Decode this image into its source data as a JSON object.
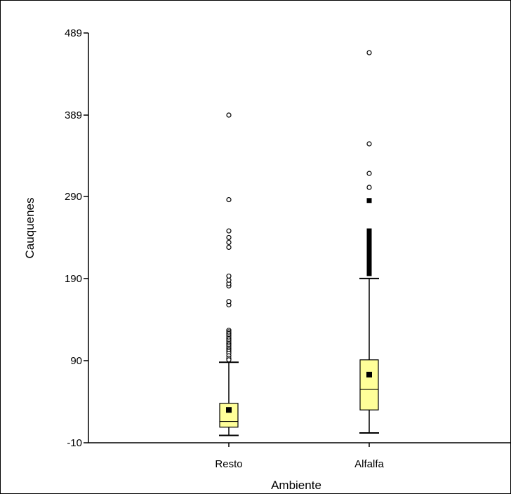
{
  "chart_data": {
    "type": "boxplot",
    "title": "",
    "xlabel": "Ambiente",
    "ylabel": "Cauquenes",
    "ylim": [
      -10,
      489
    ],
    "yticks": [
      -10,
      90,
      190,
      290,
      389,
      489
    ],
    "ytick_labels": [
      "-10",
      "90",
      "190",
      "290",
      "389",
      "489"
    ],
    "categories": [
      "Resto",
      "Alfalfa"
    ],
    "box_fill": "#ffff99",
    "series": [
      {
        "category": "Resto",
        "whisker_low": -1,
        "q1": 9,
        "median": 16,
        "q3": 38,
        "whisker_high": 88,
        "mean": 30,
        "outliers_open": [
          127,
          125,
          123,
          121,
          119,
          117,
          115,
          113,
          111,
          109,
          107,
          105,
          103,
          101,
          99,
          96,
          93,
          91,
          158,
          162,
          181,
          184,
          188,
          193,
          228,
          234,
          240,
          248,
          286,
          389
        ]
      },
      {
        "category": "Alfalfa",
        "whisker_low": 2,
        "q1": 30,
        "median": 55,
        "q3": 91,
        "whisker_high": 190,
        "mean": 73,
        "outliers_filled": [
          196,
          201,
          205,
          209,
          213,
          217,
          221,
          225,
          228,
          232,
          236,
          240,
          244,
          248,
          285
        ],
        "outliers_open": [
          301,
          318,
          354,
          465
        ]
      }
    ]
  }
}
